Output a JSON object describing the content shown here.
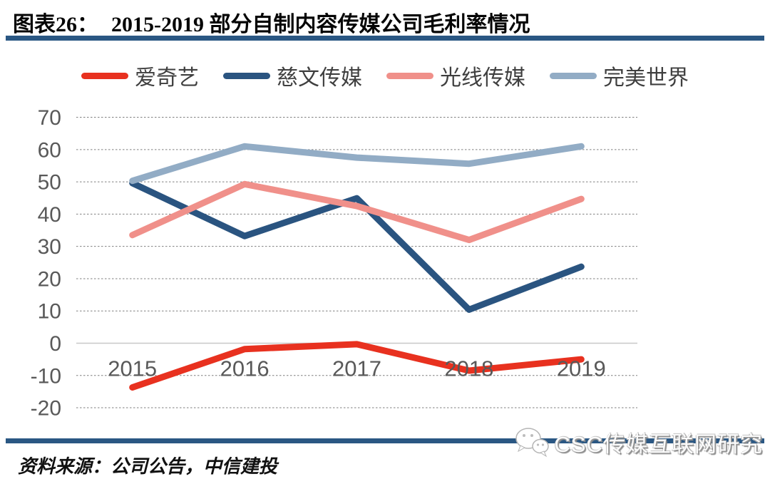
{
  "header": {
    "label": "图表26：",
    "title": "2015-2019 部分自制内容传媒公司毛利率情况"
  },
  "chart_data": {
    "type": "line",
    "categories": [
      "2015",
      "2016",
      "2017",
      "2018",
      "2019"
    ],
    "series": [
      {
        "name": "爱奇艺",
        "color": "#e8311f",
        "values": [
          -13.7,
          -1.8,
          -0.3,
          -8.5,
          -5.0
        ]
      },
      {
        "name": "慈文传媒",
        "color": "#2a5480",
        "values": [
          49.6,
          33.2,
          44.9,
          10.4,
          23.7
        ]
      },
      {
        "name": "光线传媒",
        "color": "#f0908a",
        "values": [
          33.5,
          49.3,
          42.5,
          32.0,
          44.7
        ]
      },
      {
        "name": "完美世界",
        "color": "#92acc5",
        "values": [
          50.3,
          61.0,
          57.5,
          55.6,
          61.0
        ]
      }
    ],
    "title": "2015-2019 部分自制内容传媒公司毛利率情况",
    "xlabel": "",
    "ylabel": "",
    "ylim": [
      -20,
      70
    ],
    "ytick_step": 10,
    "yticks": [
      70,
      60,
      50,
      40,
      30,
      20,
      10,
      0,
      -10,
      -20
    ],
    "grid": "horizontal-dashed",
    "legend_position": "top"
  },
  "footer": {
    "source": "资料来源：公司公告，中信建投"
  },
  "watermark": {
    "text": "CSC传媒互联网研究",
    "icon": "wechat-icon"
  },
  "colors": {
    "accent_navy": "#2a5783",
    "axis_text": "#595959",
    "gridline": "#7f7f7f",
    "zero_line": "#c8c8c8",
    "legend_text": "#3f3f3f"
  }
}
